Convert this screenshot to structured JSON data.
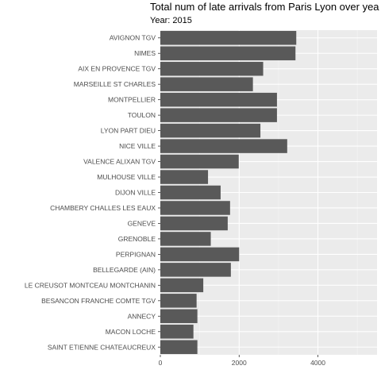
{
  "title": "Total num of late arrivals from Paris Lyon over yea",
  "subtitle": "Year: 2015",
  "chart_data": {
    "type": "bar",
    "orientation": "horizontal",
    "title": "Total num of late arrivals from Paris Lyon over yea",
    "subtitle": "Year: 2015",
    "categories": [
      "AVIGNON TGV",
      "NIMES",
      "AIX EN PROVENCE TGV",
      "MARSEILLE ST CHARLES",
      "MONTPELLIER",
      "TOULON",
      "LYON PART DIEU",
      "NICE VILLE",
      "VALENCE ALIXAN TGV",
      "MULHOUSE VILLE",
      "DIJON VILLE",
      "CHAMBERY CHALLES LES EAUX",
      "GENEVE",
      "GRENOBLE",
      "PERPIGNAN",
      "BELLEGARDE (AIN)",
      "LE CREUSOT MONTCEAU MONTCHANIN",
      "BESANCON FRANCHE COMTE TGV",
      "ANNECY",
      "MACON LOCHE",
      "SAINT ETIENNE CHATEAUCREUX"
    ],
    "values": [
      3450,
      3430,
      2610,
      2350,
      2960,
      2960,
      2540,
      3220,
      1990,
      1210,
      1530,
      1770,
      1710,
      1280,
      2000,
      1790,
      1090,
      920,
      940,
      840,
      940
    ],
    "xlabel": "",
    "ylabel": "",
    "xlim": [
      0,
      5500
    ],
    "xticks": [
      0,
      2000,
      4000
    ],
    "grid": true,
    "colors": {
      "bar": "#595959",
      "panel": "#ebebeb",
      "grid_major": "#ffffff",
      "grid_minor": "#f5f5f5"
    }
  }
}
